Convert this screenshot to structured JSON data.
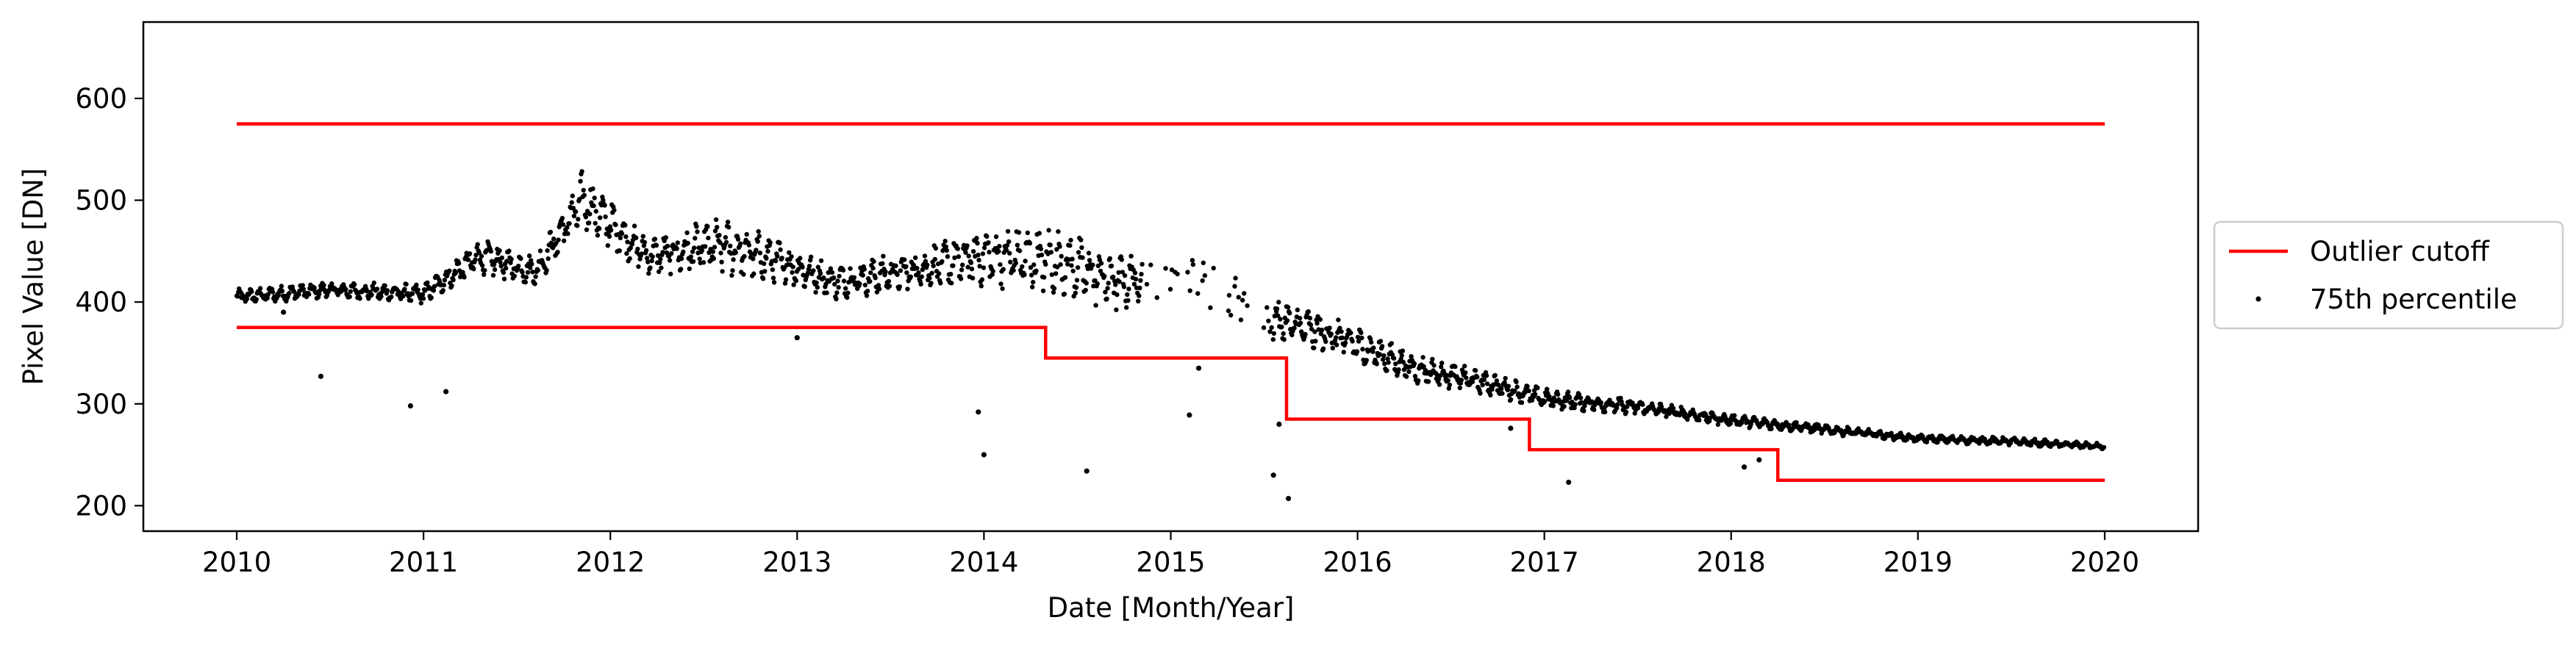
{
  "chart_data": {
    "type": "scatter",
    "xlabel": "Date [Month/Year]",
    "ylabel": "Pixel Value [DN]",
    "xlim": [
      2009.5,
      2020.5
    ],
    "ylim": [
      175,
      675
    ],
    "x_ticks": [
      2010,
      2011,
      2012,
      2013,
      2014,
      2015,
      2016,
      2017,
      2018,
      2019,
      2020
    ],
    "x_tick_labels": [
      "2010",
      "2011",
      "2012",
      "2013",
      "2014",
      "2015",
      "2016",
      "2017",
      "2018",
      "2019",
      "2020"
    ],
    "y_ticks": [
      200,
      300,
      400,
      500,
      600
    ],
    "y_tick_labels": [
      "200",
      "300",
      "400",
      "500",
      "600"
    ],
    "grid": false,
    "legend": {
      "position": "outside-right",
      "entries": [
        {
          "label": "Outlier cutoff",
          "marker": "line",
          "color": "#ff0000"
        },
        {
          "label": "75th percentile",
          "marker": "dot",
          "color": "#000000"
        }
      ]
    },
    "series": [
      {
        "name": "Outlier cutoff",
        "kind": "step-lines",
        "color": "#ff0000",
        "upper": {
          "x": [
            2010.0,
            2020.0
          ],
          "y": [
            575,
            575
          ]
        },
        "lower_steps": [
          {
            "x_start": 2010.0,
            "x_end": 2014.33,
            "y": 375
          },
          {
            "x_start": 2014.33,
            "x_end": 2015.62,
            "y": 345
          },
          {
            "x_start": 2015.62,
            "x_end": 2016.92,
            "y": 285
          },
          {
            "x_start": 2016.92,
            "x_end": 2018.25,
            "y": 255
          },
          {
            "x_start": 2018.25,
            "x_end": 2020.0,
            "y": 225
          }
        ]
      },
      {
        "name": "75th percentile",
        "kind": "dots",
        "color": "#000000",
        "trend": {
          "x": [
            2010.0,
            2010.5,
            2011.0,
            2011.3,
            2011.6,
            2011.85,
            2012.2,
            2012.6,
            2012.9,
            2013.2,
            2013.6,
            2014.0,
            2014.4,
            2014.7,
            2015.1,
            2015.5,
            2015.9,
            2016.3,
            2016.7,
            2017.0,
            2017.5,
            2018.0,
            2018.5,
            2019.0,
            2019.5,
            2020.0
          ],
          "y": [
            405,
            412,
            408,
            445,
            430,
            500,
            445,
            455,
            440,
            420,
            430,
            445,
            440,
            420,
            430,
            385,
            365,
            335,
            320,
            305,
            297,
            284,
            275,
            266,
            263,
            258
          ],
          "spread": [
            8,
            8,
            10,
            18,
            15,
            30,
            18,
            30,
            22,
            18,
            20,
            30,
            35,
            30,
            25,
            25,
            20,
            15,
            12,
            10,
            8,
            6,
            5,
            4,
            4,
            3
          ]
        },
        "outliers": {
          "x": [
            2010.25,
            2010.45,
            2010.93,
            2011.12,
            2013.0,
            2013.97,
            2014.0,
            2014.55,
            2015.1,
            2015.15,
            2015.55,
            2015.58,
            2015.63,
            2016.82,
            2017.13,
            2018.07,
            2018.15
          ],
          "y": [
            390,
            327,
            298,
            312,
            365,
            292,
            250,
            234,
            289,
            335,
            230,
            280,
            207,
            276,
            223,
            238,
            245
          ]
        }
      }
    ]
  }
}
